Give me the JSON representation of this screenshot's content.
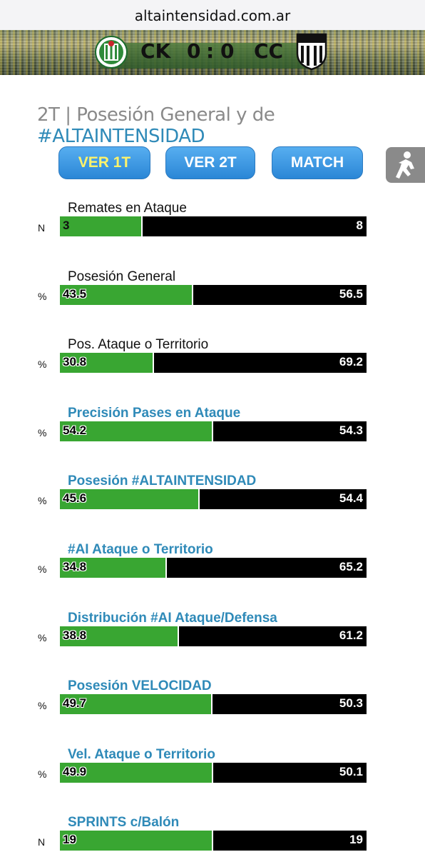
{
  "browser": {
    "url": "altaintensidad.com.ar"
  },
  "match": {
    "home_abbr": "CK",
    "away_abbr": "CC",
    "home_score": "0",
    "separator": ":",
    "away_score": "0"
  },
  "header": {
    "prefix": "2T | Posesión General y de ",
    "highlight": "#ALTAINTENSIDAD"
  },
  "buttons": {
    "ver1t": "VER 1T",
    "ver2t": "VER 2T",
    "match": "MATCH"
  },
  "colors": {
    "home": "#39a632",
    "away": "#000000",
    "accent": "#2f8ab8",
    "button": "#2a86d6",
    "active_button_text": "#fff36a"
  },
  "stats": [
    {
      "label": "Remates en Ataque",
      "unit": "N",
      "home": "3",
      "away": "8",
      "home_fraction": 0.27,
      "style": "plain"
    },
    {
      "label": "Posesión General",
      "unit": "%",
      "home": "43.5",
      "away": "56.5",
      "home_fraction": 0.435,
      "style": "plain"
    },
    {
      "label": "Pos. Ataque o Territorio",
      "unit": "%",
      "home": "30.8",
      "away": "69.2",
      "home_fraction": 0.308,
      "style": "plain"
    },
    {
      "label": "Precisión Pases en Ataque",
      "unit": "%",
      "home": "54.2",
      "away": "54.3",
      "home_fraction": 0.4995,
      "style": "blue"
    },
    {
      "label": "Posesión #ALTAINTENSIDAD",
      "unit": "%",
      "home": "45.6",
      "away": "54.4",
      "home_fraction": 0.456,
      "style": "blue"
    },
    {
      "label": "#AI Ataque o Territorio",
      "unit": "%",
      "home": "34.8",
      "away": "65.2",
      "home_fraction": 0.348,
      "style": "blue"
    },
    {
      "label": "Distribución #AI Ataque/Defensa",
      "unit": "%",
      "home": "38.8",
      "away": "61.2",
      "home_fraction": 0.388,
      "style": "blue"
    },
    {
      "label": "Posesión VELOCIDAD",
      "unit": "%",
      "home": "49.7",
      "away": "50.3",
      "home_fraction": 0.497,
      "style": "blue"
    },
    {
      "label": "Vel. Ataque o Territorio",
      "unit": "%",
      "home": "49.9",
      "away": "50.1",
      "home_fraction": 0.499,
      "style": "blue"
    },
    {
      "label": "SPRINTS c/Balón",
      "unit": "N",
      "home": "19",
      "away": "19",
      "home_fraction": 0.5,
      "style": "blue"
    }
  ]
}
